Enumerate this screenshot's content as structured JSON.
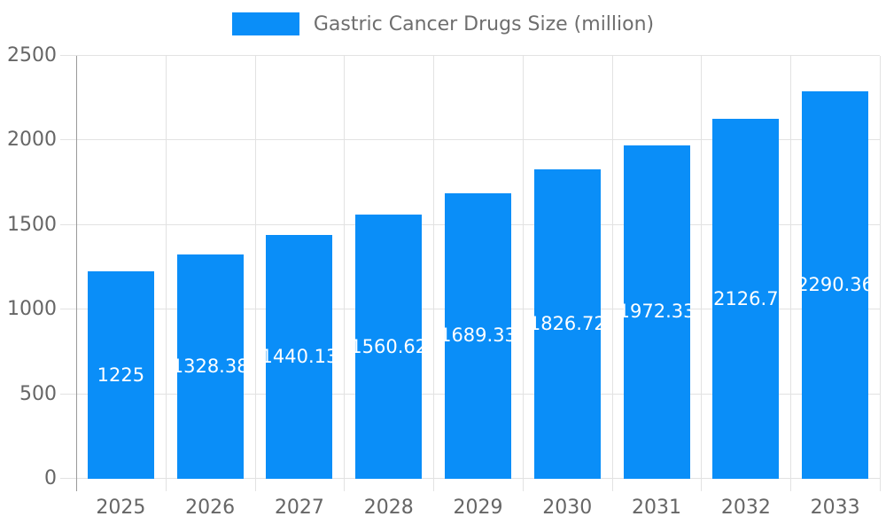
{
  "legend": {
    "label": "Gastric Cancer Drugs Size (million)"
  },
  "chart_data": {
    "type": "bar",
    "title": "Gastric Cancer Drugs Size (million)",
    "categories": [
      "2025",
      "2026",
      "2027",
      "2028",
      "2029",
      "2030",
      "2031",
      "2032",
      "2033"
    ],
    "series": [
      {
        "name": "Gastric Cancer Drugs Size (million)",
        "values": [
          1225,
          1328.38,
          1440.13,
          1560.62,
          1689.33,
          1826.72,
          1972.33,
          2126.7,
          2290.36
        ]
      }
    ],
    "bar_labels": [
      "1225",
      "1328.38",
      "1440.13",
      "1560.62",
      "1689.33",
      "1826.72",
      "1972.33",
      "2126.7",
      "2290.36"
    ],
    "xlabel": "",
    "ylabel": "",
    "ylim": [
      0,
      2500
    ],
    "y_ticks": [
      "0",
      "500",
      "1000",
      "1500",
      "2000",
      "2500"
    ],
    "grid": true,
    "legend_position": "top-center",
    "colors": {
      "bar": "#0a8ef8",
      "bar_label": "#ffffff",
      "axis_text": "#666666",
      "legend_text": "#6e6e6e",
      "gridline": "#e2e2e2",
      "axis_line": "#999999",
      "background": "#ffffff"
    }
  }
}
